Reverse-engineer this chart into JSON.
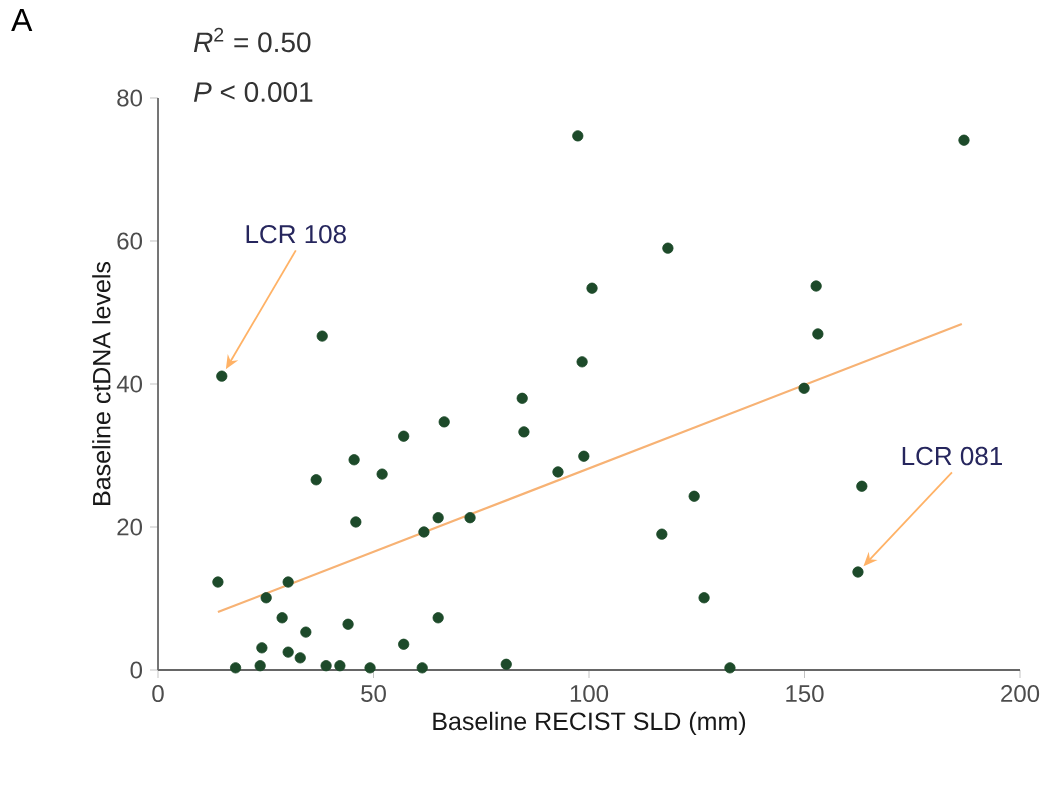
{
  "chart_data": {
    "type": "scatter",
    "title": "A",
    "xlabel": "Baseline RECIST SLD (mm)",
    "ylabel": "Baseline ctDNA levels",
    "annotations": [
      "*R*$^{2}$ = 0.50",
      "*P* < 0.001",
      {
        "text": "LCR 108",
        "x": 14.8,
        "y": 41.1
      },
      {
        "text": "LCR 081",
        "x": 162.4,
        "y": 13.7
      }
    ],
    "series": [
      {
        "color": "#1d4a2a",
        "x": [
          14.8,
          38.1,
          66.4,
          57,
          45.5,
          52,
          36.7,
          45.9,
          65,
          61.7,
          13.9,
          30.2,
          25.1,
          28.8,
          44.1,
          65,
          34.3,
          57,
          24.1,
          30.2,
          33,
          18,
          23.7,
          39,
          42.2,
          49.2,
          61.3,
          97.4,
          118.3,
          100.7,
          98.4,
          84.5,
          84.9,
          98.8,
          92.8,
          72.4,
          124.4,
          116.9,
          126.7,
          80.8,
          132.7,
          187,
          152.7,
          153.1,
          149.9,
          163.3,
          162.4
        ],
        "values": [
          41.1,
          46.7,
          34.7,
          32.7,
          29.4,
          27.4,
          26.6,
          20.7,
          21.3,
          19.3,
          12.3,
          12.3,
          10.1,
          7.3,
          6.4,
          7.3,
          5.3,
          3.6,
          3.1,
          2.5,
          1.7,
          0.3,
          0.6,
          0.6,
          0.6,
          0.3,
          0.3,
          74.7,
          59,
          53.4,
          43.1,
          38,
          33.3,
          29.9,
          27.7,
          21.3,
          24.3,
          19,
          10.1,
          0.8,
          0.3,
          74.1,
          53.7,
          47,
          39.4,
          25.7,
          13.7
        ]
      },
      {
        "type": "line",
        "color": "#f7b274",
        "marker": "none",
        "x": [
          13.9,
          186.5
        ],
        "values": [
          8.1,
          48.4
        ]
      }
    ],
    "xlim": [
      0,
      200
    ],
    "ylim": [
      0,
      80
    ],
    "xticks": [
      0,
      50,
      100,
      150,
      200
    ],
    "yticks": [
      0,
      20,
      40,
      60,
      80
    ],
    "marker": "circle"
  }
}
